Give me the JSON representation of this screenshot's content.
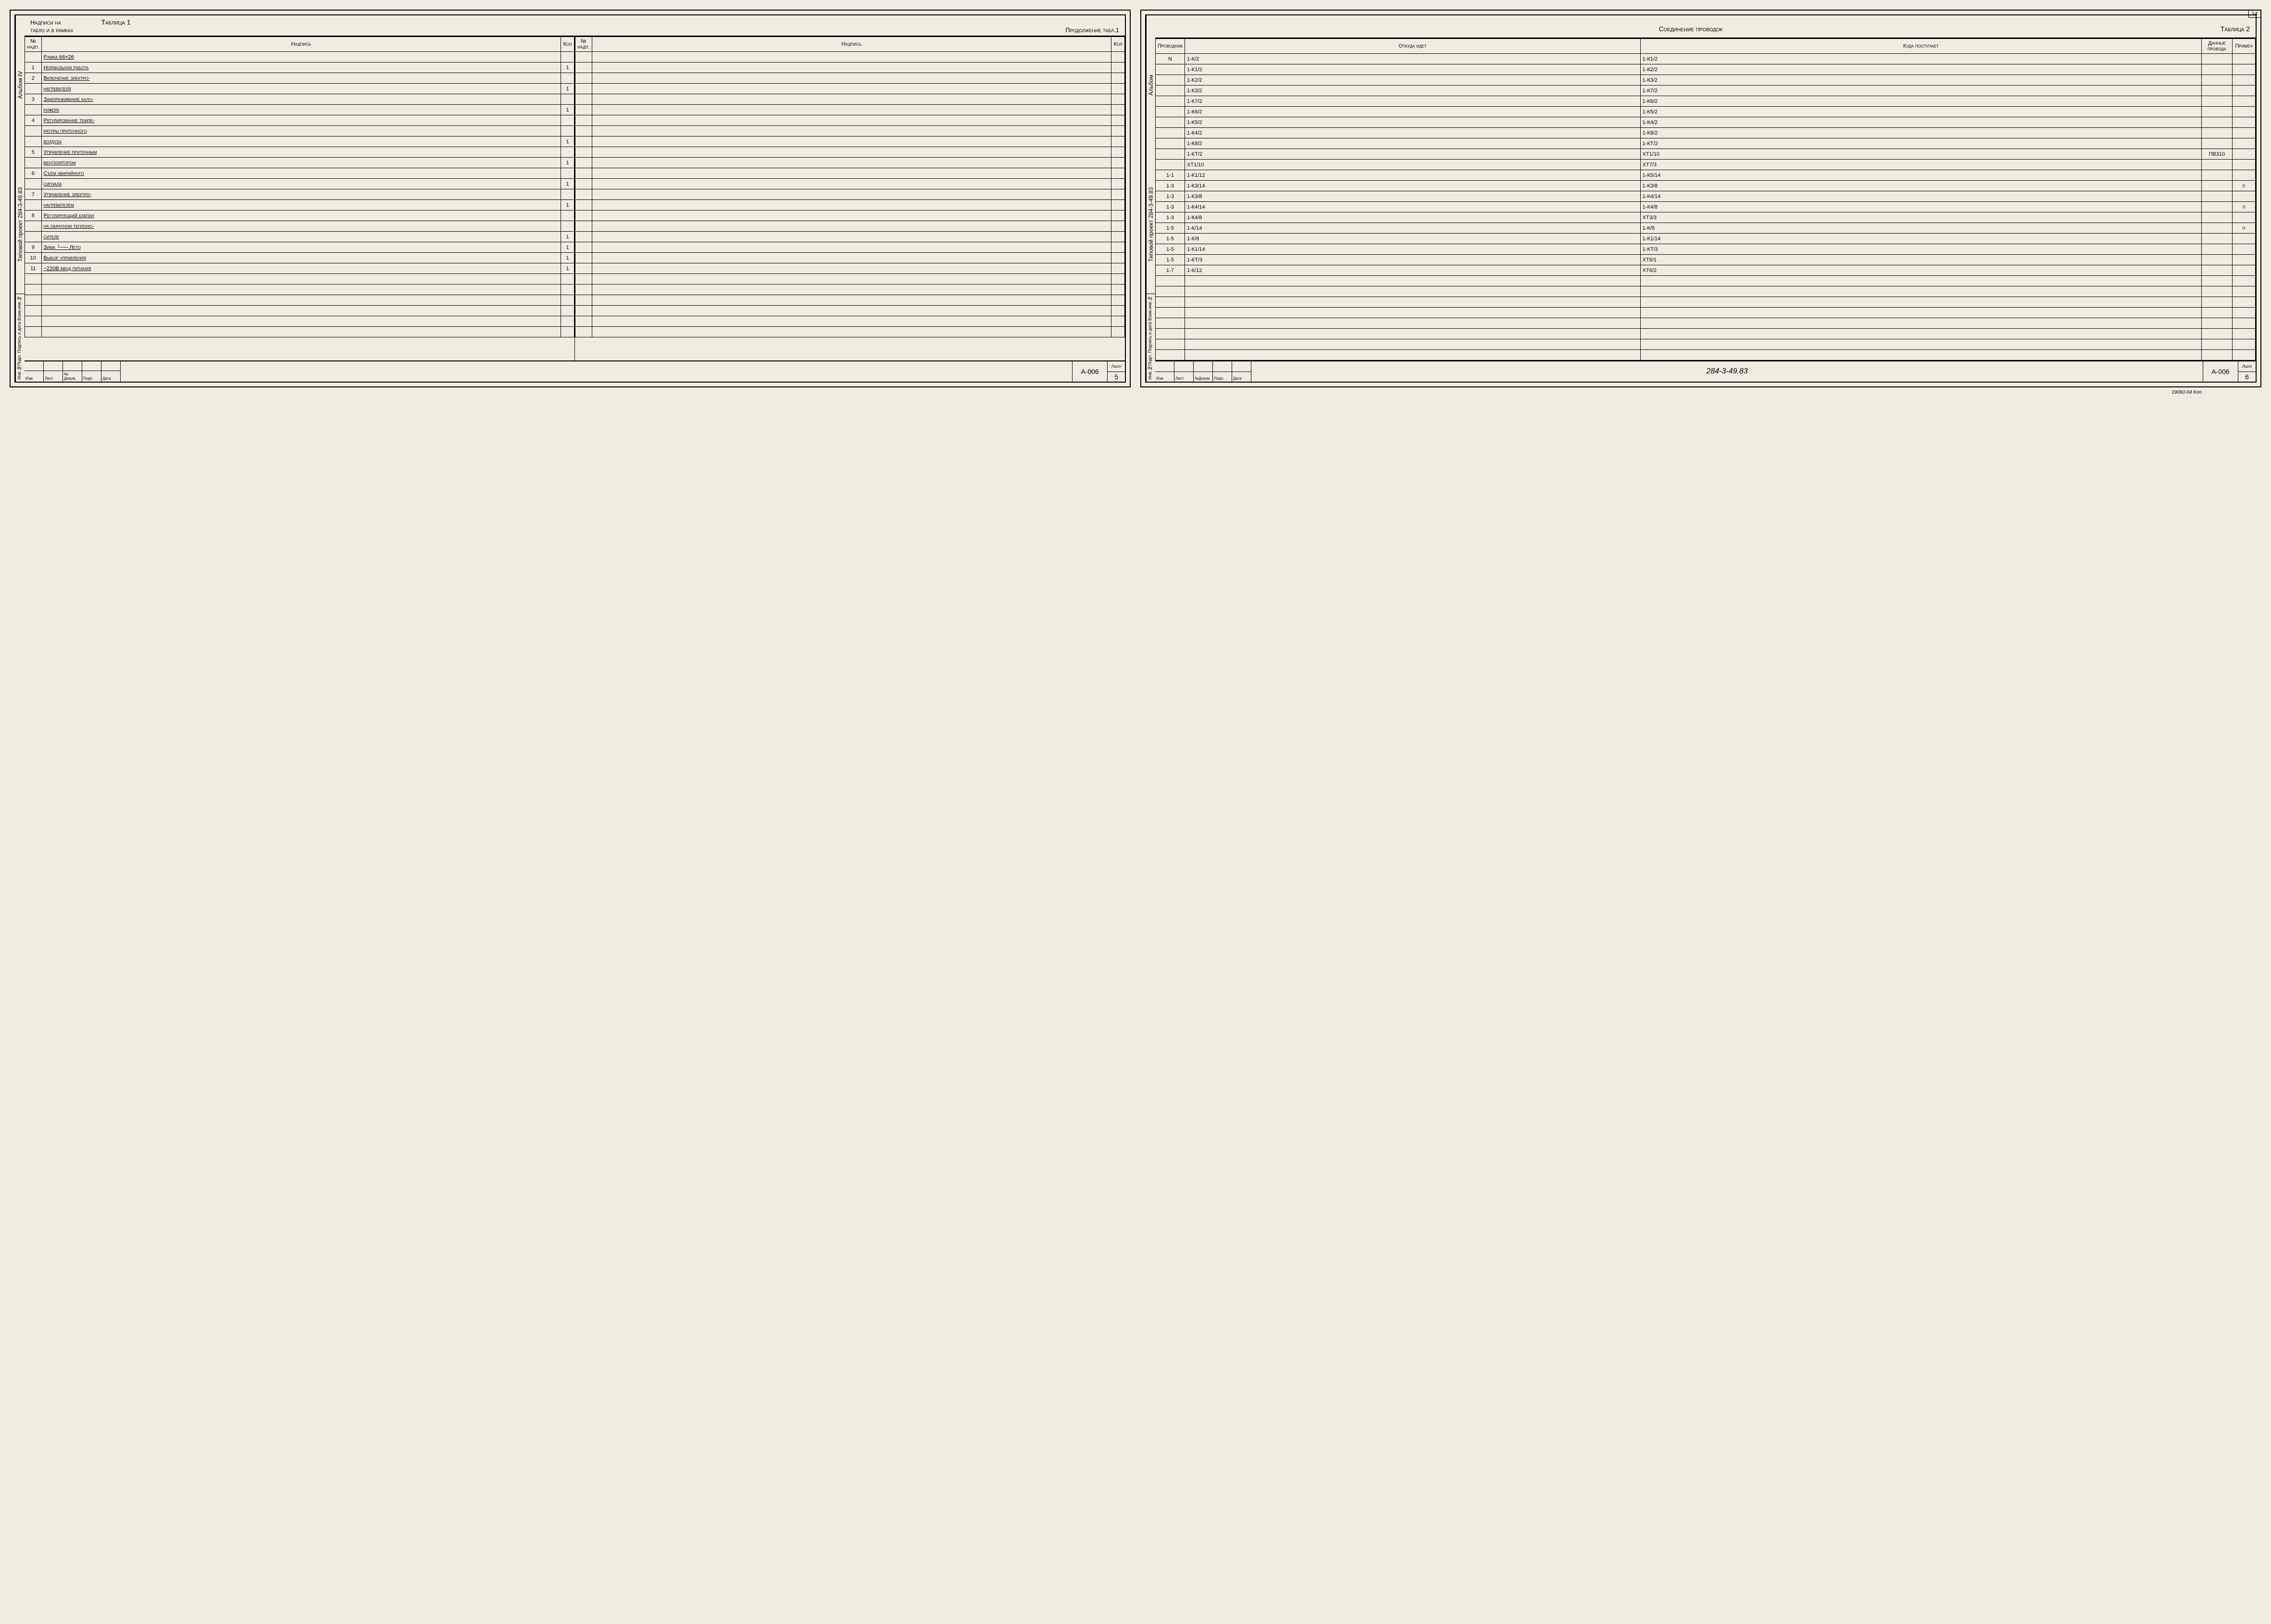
{
  "left_page": {
    "side_album": "Альбом IV",
    "side_project": "Типовой проект 284-3-49.83",
    "side_bottom": "Инв.№Подл. Подпись и дата Взам.инв.№",
    "title_top": "Таблица 1",
    "title_left1": "Надписи на",
    "title_left2": "табло и в рамках",
    "title_right": "Продолжение табл.1",
    "headers": {
      "num": "№ надп.",
      "text": "Надпись",
      "qty": "Кол"
    },
    "rows_left": [
      {
        "num": "",
        "text": "Рамка 66×26",
        "qty": ""
      },
      {
        "num": "1",
        "text": "Нормальная работа",
        "qty": "1"
      },
      {
        "num": "2",
        "text": "Включение электро-",
        "qty": ""
      },
      {
        "num": "",
        "text": "нагревателя",
        "qty": "1"
      },
      {
        "num": "3",
        "text": "Замораживание кало-",
        "qty": ""
      },
      {
        "num": "",
        "text": "рифера",
        "qty": "1"
      },
      {
        "num": "4",
        "text": "Регулирование темпе-",
        "qty": ""
      },
      {
        "num": "",
        "text": "ратуры приточного",
        "qty": ""
      },
      {
        "num": "",
        "text": "воздуха",
        "qty": "1"
      },
      {
        "num": "5",
        "text": "Управление приточным",
        "qty": ""
      },
      {
        "num": "",
        "text": "вентилятором",
        "qty": "1"
      },
      {
        "num": "6",
        "text": "Съем аварийного",
        "qty": ""
      },
      {
        "num": "",
        "text": "сигнала",
        "qty": "1"
      },
      {
        "num": "7",
        "text": "Управление электро-",
        "qty": ""
      },
      {
        "num": "",
        "text": "нагревателем",
        "qty": "1"
      },
      {
        "num": "8",
        "text": "Регулирующий клапан",
        "qty": ""
      },
      {
        "num": "",
        "text": "на обратном теплоно-",
        "qty": ""
      },
      {
        "num": "",
        "text": "сителе",
        "qty": "1"
      },
      {
        "num": "9",
        "text": "Зима └── Лето",
        "qty": "1"
      },
      {
        "num": "10",
        "text": "Выбор управления",
        "qty": "1"
      },
      {
        "num": "11",
        "text": "~220В ввод питания",
        "qty": "1"
      },
      {
        "num": "",
        "text": "",
        "qty": ""
      },
      {
        "num": "",
        "text": "",
        "qty": ""
      },
      {
        "num": "",
        "text": "",
        "qty": ""
      },
      {
        "num": "",
        "text": "",
        "qty": ""
      },
      {
        "num": "",
        "text": "",
        "qty": ""
      },
      {
        "num": "",
        "text": "",
        "qty": ""
      }
    ],
    "rows_right_count": 27,
    "footer_labels": [
      "Изм",
      "Лист",
      "№ Докум.",
      "Подп",
      "Дата"
    ],
    "doc_code": "А-006",
    "page_label": "Лист",
    "page_num": "5"
  },
  "right_page": {
    "corner": "14",
    "side_album": "Альбом",
    "side_project": "Типовой проект 284-3-49.83",
    "side_bottom": "Инв.№Подл. Подпись и дата Взам.инв.№",
    "title_main": "Соединение проводок",
    "title_tab": "Таблица 2",
    "headers": {
      "wire": "Проводник",
      "from": "Откуда идет",
      "to": "Куда поступает",
      "data": "Данные провода",
      "note": "Примеч"
    },
    "rows": [
      {
        "wire": "N",
        "from": "1-К/2",
        "to": "1-К1/2",
        "data": "",
        "note": ""
      },
      {
        "wire": "",
        "from": "1-К1/2",
        "to": "1-К2/2",
        "data": "",
        "note": ""
      },
      {
        "wire": "",
        "from": "1-К2/2",
        "to": "1-К3/2",
        "data": "",
        "note": ""
      },
      {
        "wire": "",
        "from": "1-К3/2",
        "to": "1-К7/2",
        "data": "",
        "note": ""
      },
      {
        "wire": "",
        "from": "1-К7/2",
        "to": "1-К6/2",
        "data": "",
        "note": ""
      },
      {
        "wire": "",
        "from": "1-К6/2",
        "to": "1-К5/2",
        "data": "",
        "note": ""
      },
      {
        "wire": "",
        "from": "1-К5/2",
        "to": "1-К4/2",
        "data": "",
        "note": ""
      },
      {
        "wire": "",
        "from": "1-К4/2",
        "to": "1-К8/2",
        "data": "",
        "note": ""
      },
      {
        "wire": "",
        "from": "1-К8/2",
        "to": "1-КТ/2",
        "data": "",
        "note": ""
      },
      {
        "wire": "",
        "from": "1-КТ/2",
        "to": "ХТ1/10",
        "data": "ПВ310",
        "note": ""
      },
      {
        "wire": "",
        "from": "ХТ1/10",
        "to": "ХТ7/3",
        "data": "",
        "note": ""
      },
      {
        "wire": "1-1",
        "from": "1-К1/12",
        "to": "1-К5/14",
        "data": "",
        "note": ""
      },
      {
        "wire": "1-3",
        "from": "1-К3/14",
        "to": "1-К3/8",
        "data": "",
        "note": "п"
      },
      {
        "wire": "1-3",
        "from": "1-К3/8",
        "to": "1-К4/14",
        "data": "",
        "note": ""
      },
      {
        "wire": "1-3",
        "from": "1-К4/14",
        "to": "1-К4/8",
        "data": "",
        "note": "п"
      },
      {
        "wire": "1-3",
        "from": "1-К4/8",
        "to": "ХТ3/3",
        "data": "",
        "note": ""
      },
      {
        "wire": "1-5",
        "from": "1-К/14",
        "to": "1-К/8",
        "data": "",
        "note": "п"
      },
      {
        "wire": "1-5",
        "from": "1-К/8",
        "to": "1-К1/14",
        "data": "",
        "note": ""
      },
      {
        "wire": "1-5",
        "from": "1-К1/14",
        "to": "1-КТ/3",
        "data": "",
        "note": ""
      },
      {
        "wire": "1-5",
        "from": "1-КТ/3",
        "to": "ХТ6/1",
        "data": "",
        "note": ""
      },
      {
        "wire": "1-7",
        "from": "1-К/12",
        "to": "ХТ6/2",
        "data": "",
        "note": ""
      },
      {
        "wire": "",
        "from": "",
        "to": "",
        "data": "",
        "note": ""
      },
      {
        "wire": "",
        "from": "",
        "to": "",
        "data": "",
        "note": ""
      },
      {
        "wire": "",
        "from": "",
        "to": "",
        "data": "",
        "note": ""
      },
      {
        "wire": "",
        "from": "",
        "to": "",
        "data": "",
        "note": ""
      },
      {
        "wire": "",
        "from": "",
        "to": "",
        "data": "",
        "note": ""
      },
      {
        "wire": "",
        "from": "",
        "to": "",
        "data": "",
        "note": ""
      },
      {
        "wire": "",
        "from": "",
        "to": "",
        "data": "",
        "note": ""
      },
      {
        "wire": "",
        "from": "",
        "to": "",
        "data": "",
        "note": ""
      }
    ],
    "footer_labels": [
      "Изм",
      "Лист",
      "№Докум",
      "Подп.",
      "Дата"
    ],
    "doc_num": "284-3-49.83",
    "doc_code": "А-006",
    "page_label": "Лист",
    "page_num": "6",
    "bottom_note": "19060-04  Коп."
  }
}
